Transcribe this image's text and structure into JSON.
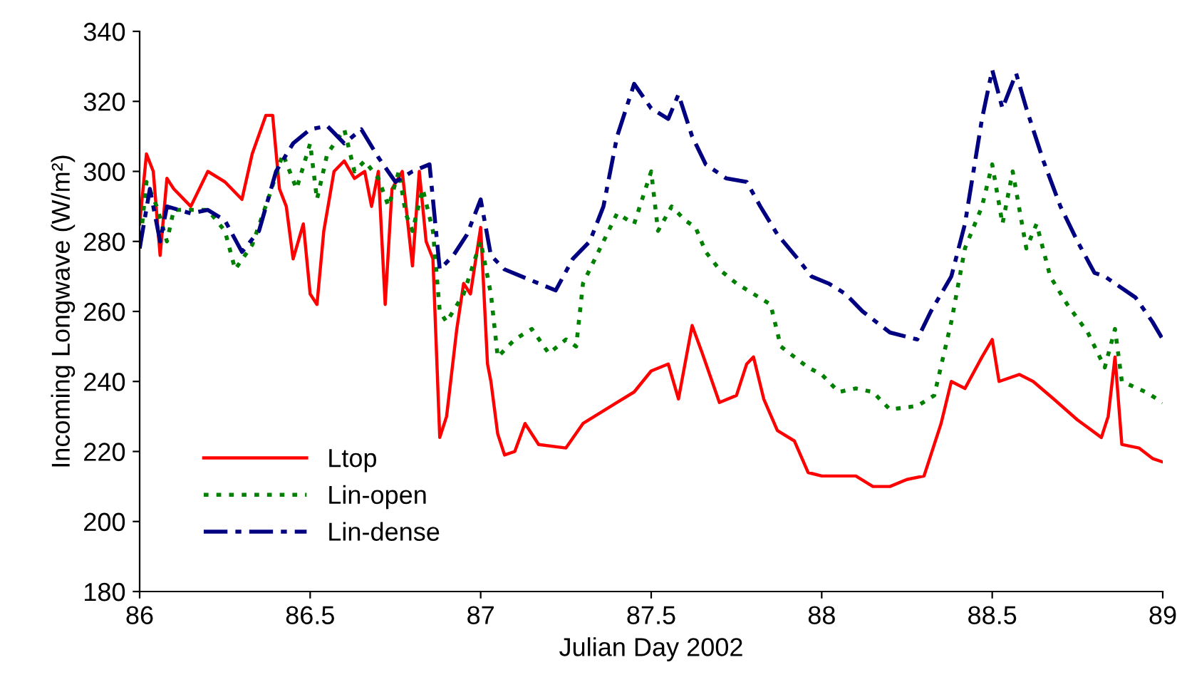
{
  "chart_data": {
    "type": "line",
    "xlabel": "Julian Day 2002",
    "ylabel": "Incoming Longwave (W/m²)",
    "xlim": [
      86,
      89
    ],
    "xticks": [
      86,
      86.5,
      87,
      87.5,
      88,
      88.5,
      89
    ],
    "ylim": [
      180,
      340
    ],
    "yticks": [
      180,
      200,
      220,
      240,
      260,
      280,
      300,
      320,
      340
    ],
    "grid": false,
    "legend": "bottom left",
    "marker": "none",
    "series": [
      {
        "name": "Ltop",
        "color": "#ff0000",
        "line_style": "solid",
        "x": [
          86.0,
          86.02,
          86.04,
          86.06,
          86.08,
          86.1,
          86.15,
          86.2,
          86.25,
          86.3,
          86.33,
          86.37,
          86.39,
          86.41,
          86.43,
          86.45,
          86.48,
          86.5,
          86.52,
          86.54,
          86.57,
          86.6,
          86.63,
          86.66,
          86.68,
          86.7,
          86.72,
          86.74,
          86.77,
          86.8,
          86.82,
          86.84,
          86.86,
          86.88,
          86.9,
          86.93,
          86.95,
          86.97,
          87.0,
          87.02,
          87.03,
          87.05,
          87.07,
          87.1,
          87.13,
          87.17,
          87.25,
          87.3,
          87.35,
          87.4,
          87.45,
          87.5,
          87.55,
          87.58,
          87.62,
          87.65,
          87.7,
          87.75,
          87.78,
          87.8,
          87.83,
          87.87,
          87.92,
          87.96,
          88.0,
          88.1,
          88.15,
          88.2,
          88.25,
          88.3,
          88.35,
          88.38,
          88.42,
          88.47,
          88.5,
          88.52,
          88.58,
          88.62,
          88.68,
          88.75,
          88.82,
          88.84,
          88.86,
          88.88,
          88.93,
          88.97,
          89.0
        ],
        "values": [
          285,
          305,
          300,
          276,
          298,
          295,
          290,
          300,
          297,
          292,
          305,
          316,
          316,
          295,
          290,
          275,
          285,
          265,
          262,
          283,
          300,
          303,
          298,
          300,
          290,
          300,
          262,
          295,
          300,
          273,
          300,
          280,
          275,
          224,
          230,
          255,
          268,
          265,
          284,
          245,
          240,
          225,
          219,
          220,
          228,
          222,
          221,
          228,
          231,
          234,
          237,
          243,
          245,
          235,
          256,
          248,
          234,
          236,
          245,
          247,
          235,
          226,
          223,
          214,
          213,
          213,
          210,
          210,
          212,
          213,
          228,
          240,
          238,
          247,
          252,
          240,
          242,
          240,
          235,
          229,
          224,
          230,
          247,
          222,
          221,
          218,
          217
        ]
      },
      {
        "name": "Lin-open",
        "color": "#008000",
        "line_style": "dotted",
        "x": [
          86.0,
          86.02,
          86.05,
          86.08,
          86.1,
          86.2,
          86.25,
          86.28,
          86.33,
          86.38,
          86.42,
          86.46,
          86.5,
          86.52,
          86.55,
          86.6,
          86.63,
          86.66,
          86.7,
          86.73,
          86.76,
          86.78,
          86.8,
          86.83,
          86.86,
          86.88,
          86.9,
          86.95,
          87.0,
          87.03,
          87.05,
          87.1,
          87.15,
          87.2,
          87.25,
          87.28,
          87.3,
          87.35,
          87.4,
          87.45,
          87.5,
          87.52,
          87.56,
          87.6,
          87.63,
          87.66,
          87.7,
          87.75,
          87.8,
          87.85,
          87.88,
          87.92,
          87.96,
          88.0,
          88.05,
          88.1,
          88.15,
          88.2,
          88.28,
          88.33,
          88.38,
          88.42,
          88.47,
          88.5,
          88.53,
          88.56,
          88.6,
          88.63,
          88.67,
          88.72,
          88.78,
          88.83,
          88.86,
          88.88,
          88.95,
          89.0
        ],
        "values": [
          278,
          297,
          290,
          280,
          289,
          289,
          283,
          272,
          279,
          293,
          305,
          295,
          308,
          292,
          305,
          312,
          300,
          303,
          298,
          290,
          300,
          288,
          283,
          295,
          283,
          260,
          257,
          265,
          280,
          265,
          247,
          252,
          255,
          248,
          252,
          250,
          268,
          278,
          288,
          285,
          300,
          283,
          290,
          286,
          284,
          277,
          272,
          268,
          265,
          262,
          250,
          247,
          244,
          242,
          237,
          238,
          237,
          232,
          233,
          236,
          257,
          278,
          290,
          302,
          285,
          300,
          278,
          285,
          270,
          262,
          254,
          244,
          255,
          240,
          237,
          234
        ]
      },
      {
        "name": "Lin-dense",
        "color": "#000080",
        "line_style": "dashdot",
        "x": [
          86.0,
          86.03,
          86.06,
          86.08,
          86.15,
          86.2,
          86.25,
          86.3,
          86.35,
          86.4,
          86.45,
          86.5,
          86.55,
          86.6,
          86.65,
          86.7,
          86.75,
          86.8,
          86.85,
          86.88,
          86.92,
          86.96,
          87.0,
          87.03,
          87.07,
          87.12,
          87.17,
          87.22,
          87.27,
          87.32,
          87.36,
          87.4,
          87.45,
          87.5,
          87.55,
          87.58,
          87.62,
          87.66,
          87.72,
          87.78,
          87.82,
          87.87,
          87.93,
          87.97,
          88.02,
          88.07,
          88.12,
          88.2,
          88.28,
          88.32,
          88.38,
          88.42,
          88.47,
          88.5,
          88.53,
          88.57,
          88.6,
          88.65,
          88.7,
          88.75,
          88.8,
          88.83,
          88.86,
          88.92,
          88.97,
          89.0
        ],
        "values": [
          278,
          295,
          280,
          290,
          288,
          289,
          286,
          277,
          283,
          300,
          308,
          312,
          313,
          308,
          312,
          304,
          297,
          300,
          302,
          272,
          276,
          282,
          292,
          276,
          272,
          270,
          268,
          266,
          275,
          280,
          290,
          310,
          325,
          318,
          315,
          322,
          310,
          302,
          298,
          297,
          290,
          282,
          275,
          270,
          268,
          265,
          260,
          254,
          252,
          260,
          270,
          285,
          315,
          329,
          318,
          328,
          318,
          303,
          290,
          280,
          271,
          270,
          268,
          264,
          257,
          252
        ]
      }
    ]
  }
}
